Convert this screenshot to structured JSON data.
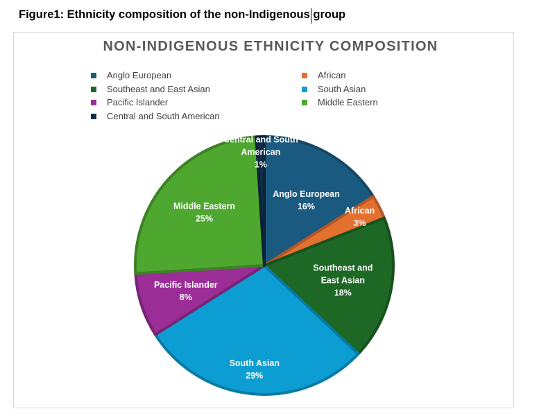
{
  "figure_caption": "Figure1: Ethnicity composition of the non-Indigenous group",
  "chart_data": {
    "type": "pie",
    "title": "NON-INDIGENOUS ETHNICITY COMPOSITION",
    "legend_position": "top",
    "categories": [
      "Anglo European",
      "African",
      "Southeast and East Asian",
      "South Asian",
      "Pacific Islander",
      "Middle Eastern",
      "Central and South American"
    ],
    "values": [
      16,
      3,
      18,
      29,
      8,
      25,
      1
    ],
    "labels": [
      "16%",
      "3%",
      "18%",
      "29%",
      "8%",
      "25%",
      "1%"
    ],
    "colors": [
      "#1b5a80",
      "#e3702f",
      "#1d6825",
      "#0c9dd2",
      "#9a2d96",
      "#4ea72e",
      "#0f2d47"
    ]
  }
}
